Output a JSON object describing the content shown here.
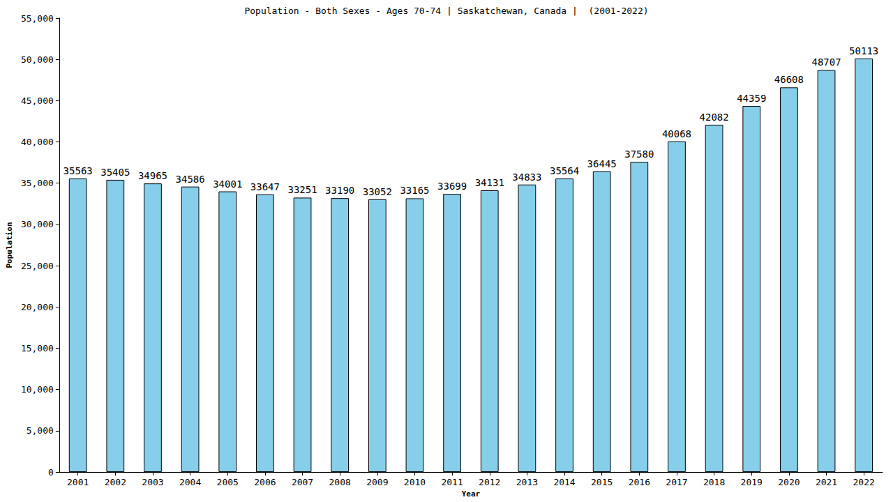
{
  "chart_data": {
    "type": "bar",
    "title": "Population - Both Sexes - Ages 70-74 | Saskatchewan, Canada |  (2001-2022)",
    "x_label": "Year",
    "y_label": "Population",
    "categories": [
      "2001",
      "2002",
      "2003",
      "2004",
      "2005",
      "2006",
      "2007",
      "2008",
      "2009",
      "2010",
      "2011",
      "2012",
      "2013",
      "2014",
      "2015",
      "2016",
      "2017",
      "2018",
      "2019",
      "2020",
      "2021",
      "2022"
    ],
    "values": [
      35563,
      35405,
      34965,
      34586,
      34001,
      33647,
      33251,
      33190,
      33052,
      33165,
      33699,
      34131,
      34833,
      35564,
      36445,
      37580,
      40068,
      42082,
      44359,
      46608,
      48707,
      50113
    ],
    "color": "#87ceeb",
    "ylim": [
      0,
      55000
    ],
    "yticks": [
      0,
      5000,
      10000,
      15000,
      20000,
      25000,
      30000,
      35000,
      40000,
      45000,
      50000,
      55000
    ],
    "grid": false,
    "data_labels": true
  }
}
